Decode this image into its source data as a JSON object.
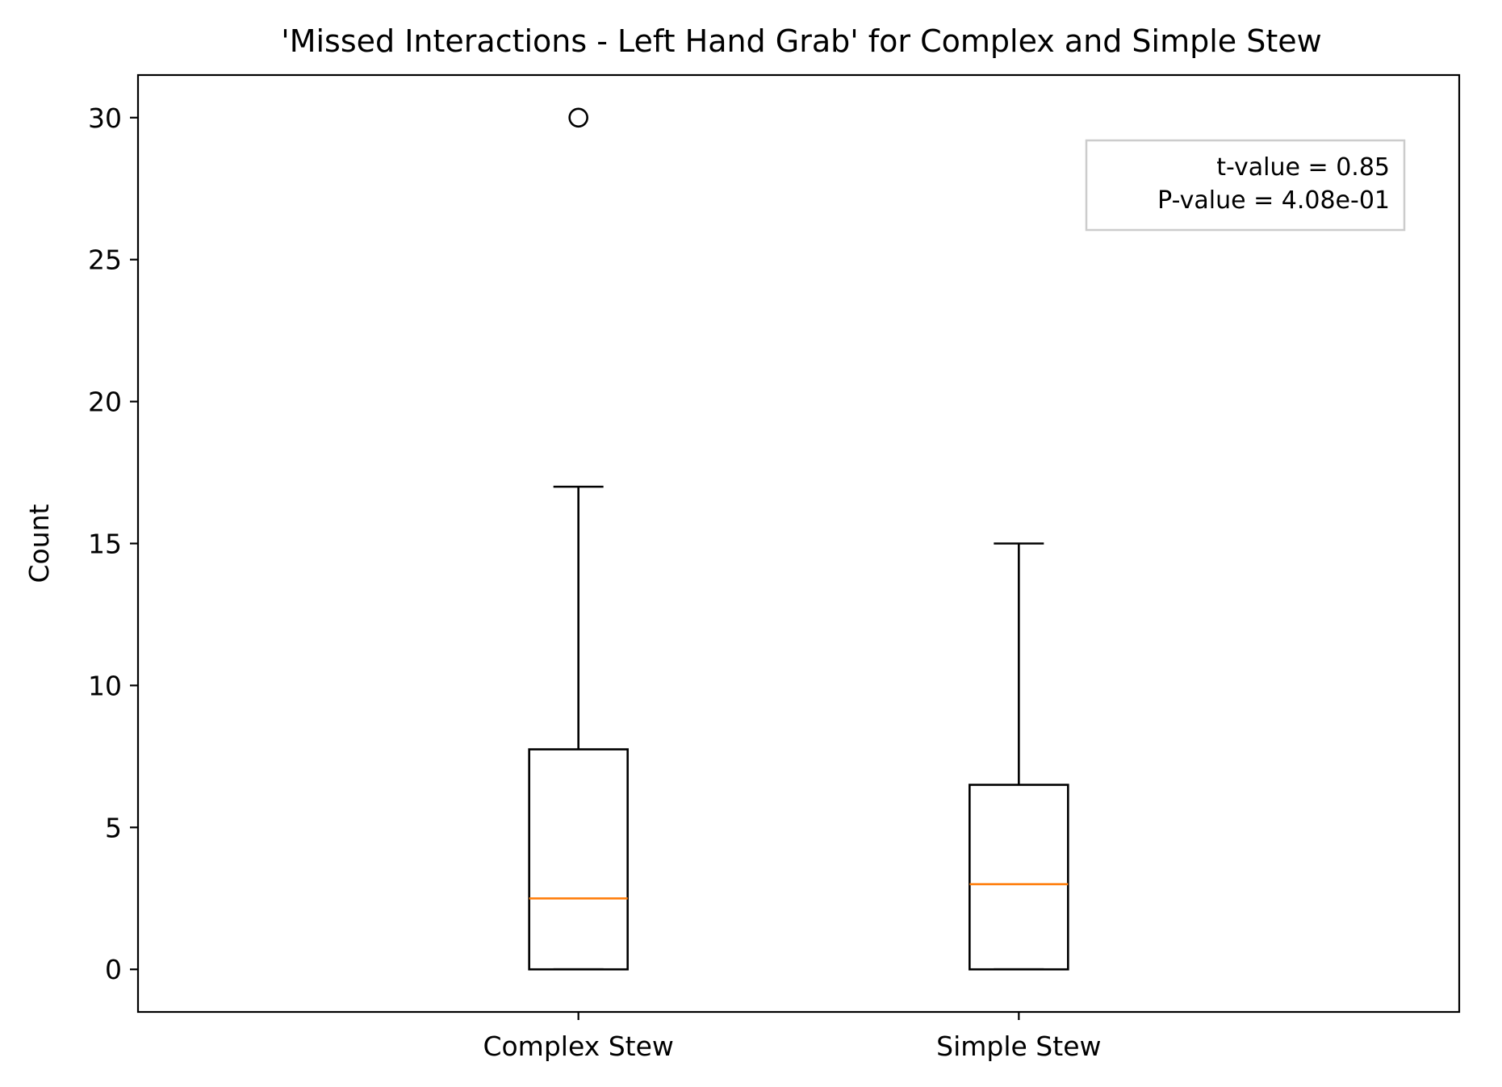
{
  "chart_data": {
    "type": "box",
    "title": "'Missed Interactions - Left Hand Grab' for Complex and Simple Stew",
    "xlabel": "",
    "ylabel": "Count",
    "ylim": [
      -1.5,
      31.5
    ],
    "yticks": [
      0,
      5,
      10,
      15,
      20,
      25,
      30
    ],
    "grid": false,
    "categories": [
      "Complex Stew",
      "Simple Stew"
    ],
    "boxes": [
      {
        "category": "Complex Stew",
        "whisker_low": 0,
        "q1": 0,
        "median": 2.5,
        "q3": 7.75,
        "whisker_high": 17,
        "outliers": [
          30
        ]
      },
      {
        "category": "Simple Stew",
        "whisker_low": 0,
        "q1": 0,
        "median": 3,
        "q3": 6.5,
        "whisker_high": 15,
        "outliers": []
      }
    ],
    "colors": {
      "box": "#000000",
      "median": "#ff7f0e",
      "annotation_border": "#cccccc"
    },
    "annotation": {
      "lines": [
        "t-value = 0.85",
        "P-value = 4.08e-01"
      ],
      "placement": "top-right"
    }
  }
}
